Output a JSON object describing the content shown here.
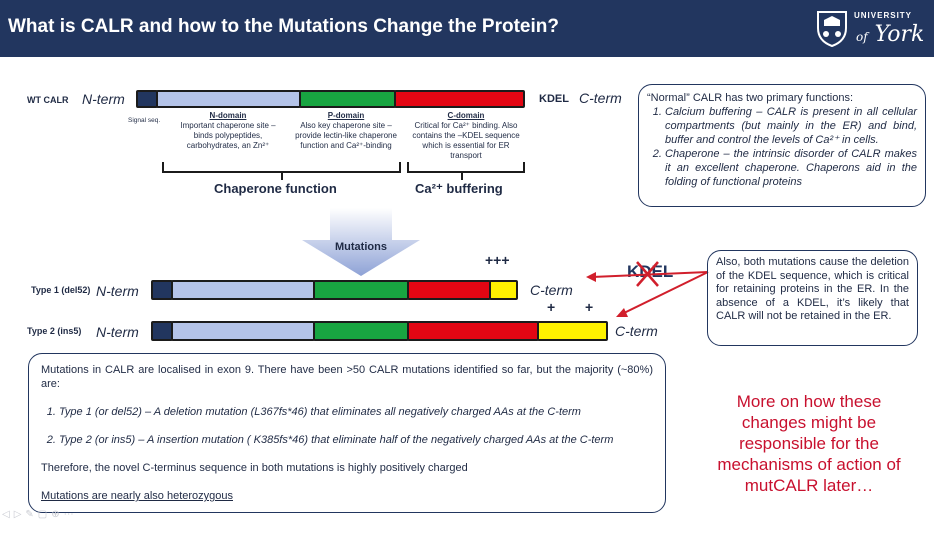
{
  "header": {
    "title": "What is CALR and how to the Mutations Change the Protein?",
    "logo_top": "UNIVERSITY",
    "logo_of": "of",
    "logo_name": "York"
  },
  "wt": {
    "label": "WT CALR",
    "nterm": "N-term",
    "cterm": "C-term",
    "kdel": "KDEL",
    "signal_seq": "Signal seq.",
    "n_domain_title": "N-domain",
    "n_domain_desc": "Important chaperone site – binds polypeptides, carbohydrates, an Zn²⁺",
    "p_domain_title": "P-domain",
    "p_domain_desc": "Also key chaperone site – provide lectin-like chaperone function and Ca²⁺-binding",
    "c_domain_title": "C-domain",
    "c_domain_desc": "Critical for Ca²⁺ binding. Also contains the –KDEL sequence which is essential for ER transport",
    "chaperone_function": "Chaperone function",
    "ca_buffering": "Ca²⁺ buffering"
  },
  "mutations_label": "Mutations",
  "type1": {
    "label": "Type 1 (del52)",
    "nterm": "N-term",
    "cterm": "C-term",
    "charge": "+++"
  },
  "type2": {
    "label": "Type 2 (ins5)",
    "nterm": "N-term",
    "cterm": "C-term",
    "charge_1": "+",
    "charge_2": "+"
  },
  "kdel_crossed": "KDEL",
  "normal_box": {
    "intro": "“Normal” CALR has two primary functions:",
    "item1": "Calcium buffering – CALR is present in all cellular compartments (but mainly in the ER) and bind, buffer and control the levels of Ca²⁺ in cells.",
    "item2": "Chaperone – the intrinsic disorder of CALR makes it an excellent chaperone. Chaperons aid in the folding of functional proteins"
  },
  "kdel_box": {
    "text": "Also, both mutations cause the deletion of the KDEL sequence, which is critical for retaining proteins in the ER. In the absence of a KDEL, it’s likely that CALR will not be retained in the ER."
  },
  "mutations_box": {
    "intro": "Mutations in CALR are localised in exon 9. There have been >50 CALR mutations identified so far, but the majority (~80%) are:",
    "item1": "Type 1 (or del52) – A deletion mutation (L367fs*46) that eliminates all negatively charged AAs at the C-term",
    "item2": "Type 2 (or ins5) – A insertion mutation ( K385fs*46) that eliminate half of the negatively charged AAs at the C-term",
    "therefore": "Therefore, the novel C-terminus sequence in both mutations is highly positively charged",
    "link": "Mutations are nearly also heterozygous"
  },
  "red_note": "More on how these changes might be responsible for the mechanisms of action of mutCALR later…",
  "colors": {
    "header": "#22365f",
    "signal": "#22365f",
    "n_domain": "#b4c3e8",
    "p_domain": "#18a541",
    "c_domain": "#e30613",
    "new_cterm": "#fff200",
    "note_red": "#c8102e"
  }
}
